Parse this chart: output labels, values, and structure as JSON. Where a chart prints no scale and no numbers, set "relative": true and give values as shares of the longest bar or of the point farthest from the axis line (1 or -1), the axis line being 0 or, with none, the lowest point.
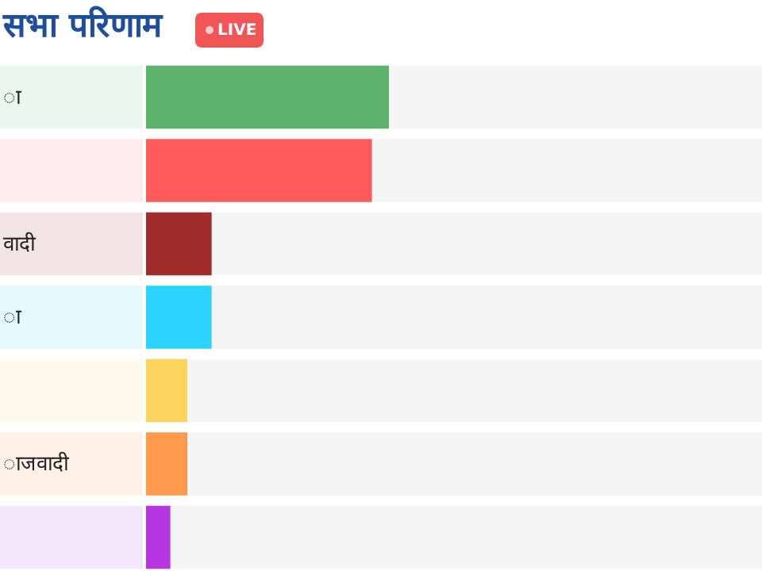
{
  "chart_data": {
    "type": "bar",
    "orientation": "horizontal",
    "relative": true,
    "title": "सभा परिणाम",
    "annotations": [
      "LIVE"
    ],
    "categories": [
      "ा",
      null,
      "वादी",
      "ा",
      null,
      "ाजवादी",
      null
    ],
    "values": [
      1,
      0.93,
      0.27,
      0.27,
      0.17,
      0.17,
      0.1
    ],
    "colors": [
      "#5db36b",
      "#ff5a5a",
      "#a02c2c",
      "#2ad4ff",
      "#fcd55f",
      "#ff9a4d",
      "#b535e0"
    ]
  }
}
